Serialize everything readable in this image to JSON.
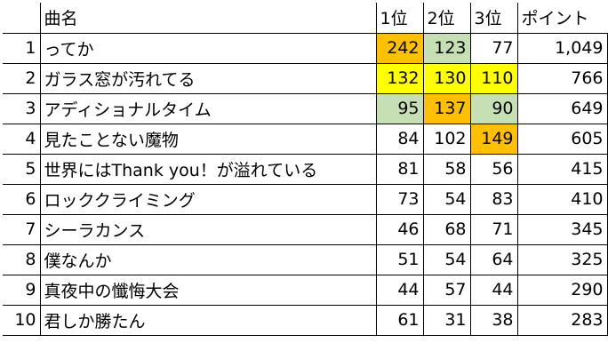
{
  "table": {
    "headers": [
      "",
      "曲名",
      "1位",
      "2位",
      "3位",
      "ポイント"
    ],
    "colors": {
      "orange": "#FFC000",
      "yellow": "#FFFF00",
      "green": "#C6E0B4"
    },
    "rows": [
      {
        "rank": "1",
        "title": "ってか",
        "first": "242",
        "second": "123",
        "third": "77",
        "points": "1,049",
        "hl": [
          "orange",
          "green",
          ""
        ]
      },
      {
        "rank": "2",
        "title": "ガラス窓が汚れてる",
        "first": "132",
        "second": "130",
        "third": "110",
        "points": "766",
        "hl": [
          "yellow",
          "yellow",
          "yellow"
        ]
      },
      {
        "rank": "3",
        "title": "アディショナルタイム",
        "first": "95",
        "second": "137",
        "third": "90",
        "points": "649",
        "hl": [
          "green",
          "orange",
          "green"
        ]
      },
      {
        "rank": "4",
        "title": "見たことない魔物",
        "first": "84",
        "second": "102",
        "third": "149",
        "points": "605",
        "hl": [
          "",
          "",
          "orange"
        ]
      },
      {
        "rank": "5",
        "title": "世界にはThank you！が溢れている",
        "first": "81",
        "second": "58",
        "third": "56",
        "points": "415",
        "hl": [
          "",
          "",
          ""
        ]
      },
      {
        "rank": "6",
        "title": "ロッククライミング",
        "first": "73",
        "second": "54",
        "third": "83",
        "points": "410",
        "hl": [
          "",
          "",
          ""
        ]
      },
      {
        "rank": "7",
        "title": "シーラカンス",
        "first": "46",
        "second": "68",
        "third": "71",
        "points": "345",
        "hl": [
          "",
          "",
          ""
        ]
      },
      {
        "rank": "8",
        "title": "僕なんか",
        "first": "51",
        "second": "54",
        "third": "64",
        "points": "325",
        "hl": [
          "",
          "",
          ""
        ]
      },
      {
        "rank": "9",
        "title": "真夜中の懺悔大会",
        "first": "44",
        "second": "57",
        "third": "44",
        "points": "290",
        "hl": [
          "",
          "",
          ""
        ]
      },
      {
        "rank": "10",
        "title": "君しか勝たん",
        "first": "61",
        "second": "31",
        "third": "38",
        "points": "283",
        "hl": [
          "",
          "",
          ""
        ]
      }
    ]
  }
}
